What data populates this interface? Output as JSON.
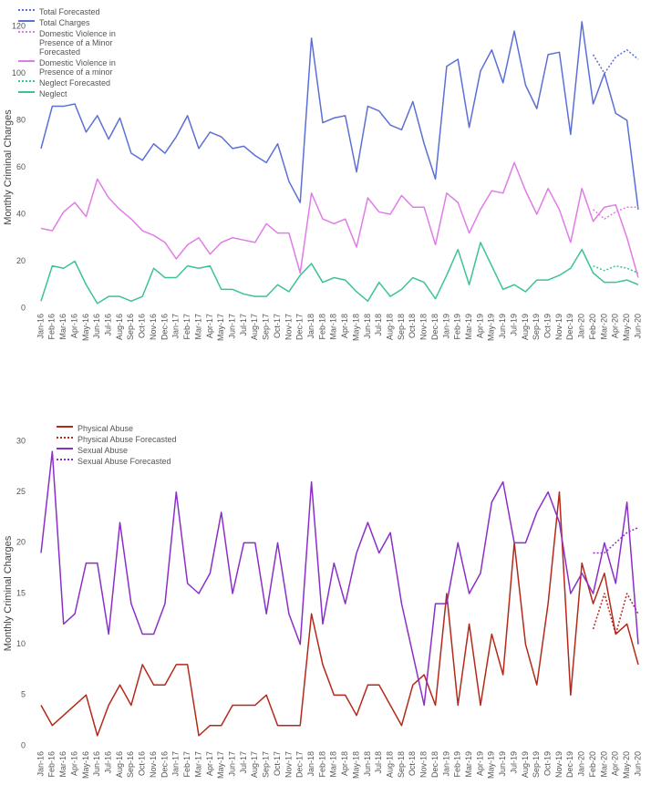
{
  "chart_data": [
    {
      "type": "line",
      "y_label": "Monthly Criminal Charges",
      "categories": [
        "Jan-16",
        "Feb-16",
        "Mar-16",
        "Apr-16",
        "May-16",
        "Jun-16",
        "Jul-16",
        "Aug-16",
        "Sep-16",
        "Oct-16",
        "Nov-16",
        "Dec-16",
        "Jan-17",
        "Feb-17",
        "Mar-17",
        "Apr-17",
        "May-17",
        "Jun-17",
        "Jul-17",
        "Aug-17",
        "Sep-17",
        "Oct-17",
        "Nov-17",
        "Dec-17",
        "Jan-18",
        "Feb-18",
        "Mar-18",
        "Apr-18",
        "May-18",
        "Jun-18",
        "Jul-18",
        "Aug-18",
        "Sep-18",
        "Oct-18",
        "Nov-18",
        "Dec-18",
        "Jan-19",
        "Feb-19",
        "Mar-19",
        "Apr-19",
        "May-19",
        "Jun-19",
        "Jul-19",
        "Aug-19",
        "Sep-19",
        "Oct-19",
        "Nov-19",
        "Dec-19",
        "Jan-20",
        "Feb-20",
        "Mar-20",
        "Apr-20",
        "May-20",
        "Jun-20"
      ],
      "ylim": [
        0,
        120
      ],
      "yticks": [
        0,
        20,
        40,
        60,
        80,
        100,
        120
      ],
      "grid": false,
      "legend": "top-left",
      "series": [
        {
          "name": "Total Forecasted",
          "color": "#5b6fd6",
          "dashed": true,
          "values": [
            null,
            null,
            null,
            null,
            null,
            null,
            null,
            null,
            null,
            null,
            null,
            null,
            null,
            null,
            null,
            null,
            null,
            null,
            null,
            null,
            null,
            null,
            null,
            null,
            null,
            null,
            null,
            null,
            null,
            null,
            null,
            null,
            null,
            null,
            null,
            null,
            null,
            null,
            null,
            null,
            null,
            null,
            null,
            null,
            null,
            null,
            null,
            null,
            null,
            108,
            100,
            107,
            110,
            106
          ]
        },
        {
          "name": "Total Charges",
          "color": "#5b6fd6",
          "dashed": false,
          "values": [
            68,
            86,
            86,
            87,
            75,
            82,
            72,
            81,
            66,
            63,
            70,
            66,
            73,
            82,
            68,
            75,
            73,
            68,
            69,
            65,
            62,
            70,
            54,
            45,
            115,
            79,
            81,
            82,
            58,
            86,
            84,
            78,
            76,
            88,
            70,
            55,
            103,
            106,
            77,
            101,
            110,
            96,
            118,
            95,
            85,
            108,
            109,
            74,
            122,
            87,
            100,
            83,
            80,
            42
          ]
        },
        {
          "name": "Domestic Violence in Presence of a Minor Forecasted",
          "color": "#e07ce6",
          "dashed": true,
          "values": [
            null,
            null,
            null,
            null,
            null,
            null,
            null,
            null,
            null,
            null,
            null,
            null,
            null,
            null,
            null,
            null,
            null,
            null,
            null,
            null,
            null,
            null,
            null,
            null,
            null,
            null,
            null,
            null,
            null,
            null,
            null,
            null,
            null,
            null,
            null,
            null,
            null,
            null,
            null,
            null,
            null,
            null,
            null,
            null,
            null,
            null,
            null,
            null,
            null,
            42,
            38,
            41,
            43,
            43
          ]
        },
        {
          "name": "Domestic Violence in Presence of a minor",
          "color": "#e07ce6",
          "dashed": false,
          "values": [
            34,
            33,
            41,
            45,
            39,
            55,
            47,
            42,
            38,
            33,
            31,
            28,
            21,
            27,
            30,
            23,
            28,
            30,
            29,
            28,
            36,
            32,
            32,
            15,
            49,
            38,
            36,
            38,
            26,
            47,
            41,
            40,
            48,
            43,
            43,
            27,
            49,
            45,
            32,
            42,
            50,
            49,
            62,
            50,
            40,
            51,
            42,
            28,
            51,
            37,
            43,
            44,
            30,
            13
          ]
        },
        {
          "name": "Neglect Forecasted",
          "color": "#3cc29a",
          "dashed": true,
          "values": [
            null,
            null,
            null,
            null,
            null,
            null,
            null,
            null,
            null,
            null,
            null,
            null,
            null,
            null,
            null,
            null,
            null,
            null,
            null,
            null,
            null,
            null,
            null,
            null,
            null,
            null,
            null,
            null,
            null,
            null,
            null,
            null,
            null,
            null,
            null,
            null,
            null,
            null,
            null,
            null,
            null,
            null,
            null,
            null,
            null,
            null,
            null,
            null,
            null,
            18,
            16,
            18,
            17,
            15
          ]
        },
        {
          "name": "Neglect",
          "color": "#3cc29a",
          "dashed": false,
          "values": [
            3,
            18,
            17,
            20,
            10,
            2,
            5,
            5,
            3,
            5,
            17,
            13,
            13,
            18,
            17,
            18,
            8,
            8,
            6,
            5,
            5,
            10,
            7,
            14,
            19,
            11,
            13,
            12,
            7,
            3,
            11,
            5,
            8,
            13,
            11,
            4,
            14,
            25,
            10,
            28,
            18,
            8,
            10,
            7,
            12,
            12,
            14,
            17,
            25,
            15,
            11,
            11,
            12,
            10
          ]
        }
      ]
    },
    {
      "type": "line",
      "y_label": "Monthly Criminal Charges",
      "categories": [
        "Jan-16",
        "Feb-16",
        "Mar-16",
        "Apr-16",
        "May-16",
        "Jun-16",
        "Jul-16",
        "Aug-16",
        "Sep-16",
        "Oct-16",
        "Nov-16",
        "Dec-16",
        "Jan-17",
        "Feb-17",
        "Mar-17",
        "Apr-17",
        "May-17",
        "Jun-17",
        "Jul-17",
        "Aug-17",
        "Sep-17",
        "Oct-17",
        "Nov-17",
        "Dec-17",
        "Jan-18",
        "Feb-18",
        "Mar-18",
        "Apr-18",
        "May-18",
        "Jun-18",
        "Jul-18",
        "Aug-18",
        "Sep-18",
        "Oct-18",
        "Nov-18",
        "Dec-18",
        "Jan-19",
        "Feb-19",
        "Mar-19",
        "Apr-19",
        "May-19",
        "Jun-19",
        "Jul-19",
        "Aug-19",
        "Sep-19",
        "Oct-19",
        "Nov-19",
        "Dec-19",
        "Jan-20",
        "Feb-20",
        "Mar-20",
        "Apr-20",
        "May-20",
        "Jun-20"
      ],
      "ylim": [
        0,
        30
      ],
      "yticks": [
        0,
        5,
        10,
        15,
        20,
        25,
        30
      ],
      "grid": false,
      "legend": "top-left",
      "series": [
        {
          "name": "Physical Abuse",
          "color": "#b5291a",
          "dashed": false,
          "values": [
            4,
            2,
            3,
            4,
            5,
            1,
            4,
            6,
            4,
            8,
            6,
            6,
            8,
            8,
            1,
            2,
            2,
            4,
            4,
            4,
            5,
            2,
            2,
            2,
            13,
            8,
            5,
            5,
            3,
            6,
            6,
            4,
            2,
            6,
            7,
            4,
            15,
            4,
            12,
            4,
            11,
            7,
            20,
            10,
            6,
            14,
            25,
            5,
            18,
            14,
            17,
            11,
            12,
            8
          ]
        },
        {
          "name": "Physical Abuse Forecasted",
          "color": "#b5291a",
          "dashed": true,
          "values": [
            null,
            null,
            null,
            null,
            null,
            null,
            null,
            null,
            null,
            null,
            null,
            null,
            null,
            null,
            null,
            null,
            null,
            null,
            null,
            null,
            null,
            null,
            null,
            null,
            null,
            null,
            null,
            null,
            null,
            null,
            null,
            null,
            null,
            null,
            null,
            null,
            null,
            null,
            null,
            null,
            null,
            null,
            null,
            null,
            null,
            null,
            null,
            null,
            null,
            11.5,
            15,
            11,
            15,
            13
          ]
        },
        {
          "name": "Sexual Abuse",
          "color": "#8b2fc9",
          "dashed": false,
          "values": [
            19,
            29,
            12,
            13,
            18,
            18,
            11,
            22,
            14,
            11,
            11,
            14,
            25,
            16,
            15,
            17,
            23,
            15,
            20,
            20,
            13,
            20,
            13,
            10,
            26,
            12,
            18,
            14,
            19,
            22,
            19,
            21,
            14,
            9,
            4,
            14,
            14,
            20,
            15,
            17,
            24,
            26,
            20,
            20,
            23,
            25,
            22,
            15,
            17,
            15,
            20,
            16,
            24,
            10
          ]
        },
        {
          "name": "Sexual Abuse Forecasted",
          "color": "#8b2fc9",
          "dashed": true,
          "values": [
            null,
            null,
            null,
            null,
            null,
            null,
            null,
            null,
            null,
            null,
            null,
            null,
            null,
            null,
            null,
            null,
            null,
            null,
            null,
            null,
            null,
            null,
            null,
            null,
            null,
            null,
            null,
            null,
            null,
            null,
            null,
            null,
            null,
            null,
            null,
            null,
            null,
            null,
            null,
            null,
            null,
            null,
            null,
            null,
            null,
            null,
            null,
            null,
            null,
            19,
            19,
            20,
            21,
            21.5
          ]
        }
      ]
    }
  ]
}
